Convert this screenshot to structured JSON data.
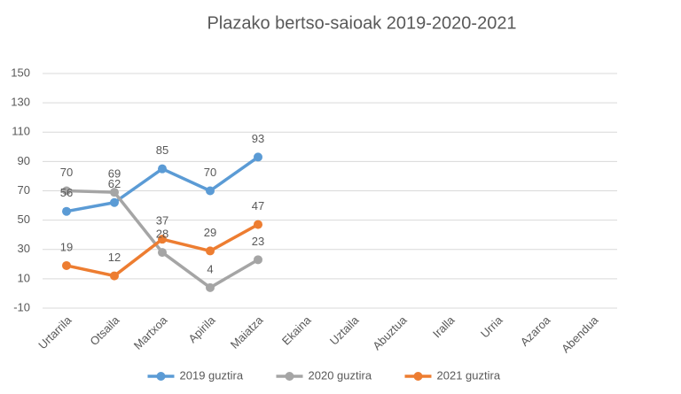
{
  "chart_data": {
    "type": "line",
    "title": "Plazako bertso-saioak 2019-2020-2021",
    "categories": [
      "Urtarrila",
      "Otsaila",
      "Martxoa",
      "Apirila",
      "Maiatza",
      "Ekaina",
      "Uztaila",
      "Abuztua",
      "Iralla",
      "Urria",
      "Azaroa",
      "Abendua"
    ],
    "series": [
      {
        "name": "2019 guztira",
        "color": "#5b9bd5",
        "values": [
          56,
          62,
          85,
          70,
          93,
          null,
          null,
          null,
          null,
          null,
          null,
          null
        ]
      },
      {
        "name": "2020 guztira",
        "color": "#a5a5a5",
        "values": [
          70,
          69,
          28,
          4,
          23,
          null,
          null,
          null,
          null,
          null,
          null,
          null
        ]
      },
      {
        "name": "2021 guztira",
        "color": "#ed7d31",
        "values": [
          19,
          12,
          37,
          29,
          47,
          null,
          null,
          null,
          null,
          null,
          null,
          null
        ]
      }
    ],
    "ylim": [
      -10,
      150
    ],
    "yticks": [
      -10,
      10,
      30,
      50,
      70,
      90,
      110,
      130,
      150
    ],
    "grid": true,
    "legend": "bottom"
  }
}
